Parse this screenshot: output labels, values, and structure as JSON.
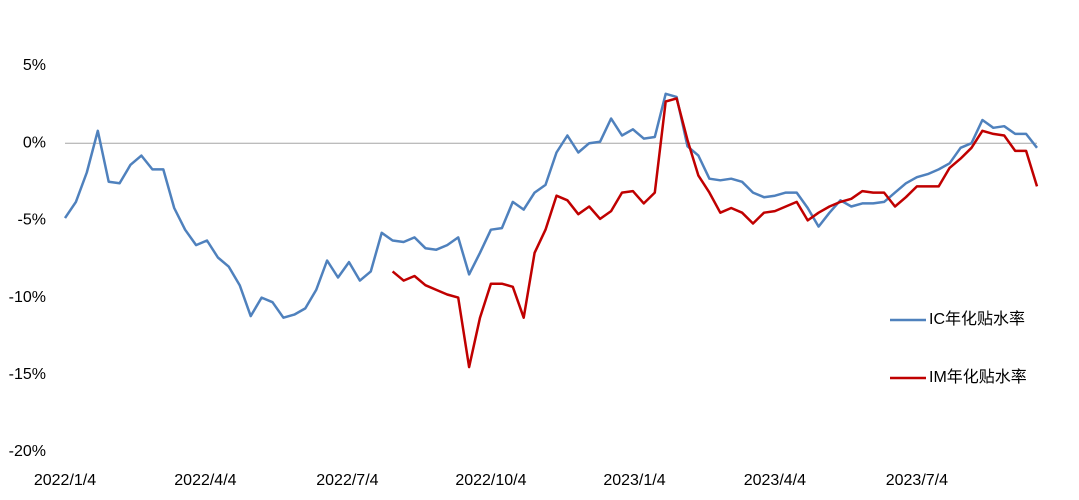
{
  "chart_data": {
    "type": "line",
    "x": [
      "2022/1/4",
      "2022/1/11",
      "2022/1/18",
      "2022/1/25",
      "2022/2/1",
      "2022/2/8",
      "2022/2/15",
      "2022/2/22",
      "2022/3/1",
      "2022/3/8",
      "2022/3/15",
      "2022/3/22",
      "2022/3/29",
      "2022/4/5",
      "2022/4/12",
      "2022/4/19",
      "2022/4/26",
      "2022/5/3",
      "2022/5/10",
      "2022/5/17",
      "2022/5/24",
      "2022/5/31",
      "2022/6/7",
      "2022/6/14",
      "2022/6/21",
      "2022/6/28",
      "2022/7/5",
      "2022/7/12",
      "2022/7/19",
      "2022/7/26",
      "2022/8/2",
      "2022/8/9",
      "2022/8/16",
      "2022/8/23",
      "2022/8/30",
      "2022/9/6",
      "2022/9/13",
      "2022/9/20",
      "2022/9/27",
      "2022/10/4",
      "2022/10/11",
      "2022/10/18",
      "2022/10/25",
      "2022/11/1",
      "2022/11/8",
      "2022/11/15",
      "2022/11/22",
      "2022/11/29",
      "2022/12/6",
      "2022/12/13",
      "2022/12/20",
      "2022/12/27",
      "2023/1/3",
      "2023/1/10",
      "2023/1/17",
      "2023/1/24",
      "2023/1/31",
      "2023/2/7",
      "2023/2/14",
      "2023/2/21",
      "2023/2/28",
      "2023/3/7",
      "2023/3/14",
      "2023/3/21",
      "2023/3/28",
      "2023/4/4",
      "2023/4/11",
      "2023/4/18",
      "2023/4/25",
      "2023/5/2",
      "2023/5/9",
      "2023/5/16",
      "2023/5/23",
      "2023/5/30",
      "2023/6/6",
      "2023/6/13",
      "2023/6/20",
      "2023/6/27",
      "2023/7/4",
      "2023/7/11",
      "2023/7/18",
      "2023/7/25",
      "2023/8/1",
      "2023/8/8",
      "2023/8/15",
      "2023/8/22",
      "2023/8/29",
      "2023/9/5",
      "2023/9/12",
      "2023/9/19"
    ],
    "series": [
      {
        "name": "IC年化贴水率",
        "color": "#4f81bd",
        "values": [
          -4.85,
          -3.8,
          -1.9,
          0.8,
          -2.5,
          -2.6,
          -1.4,
          -0.8,
          -1.7,
          -1.7,
          -4.2,
          -5.6,
          -6.6,
          -6.3,
          -7.4,
          -8.0,
          -9.2,
          -11.2,
          -10.0,
          -10.3,
          -11.3,
          -11.1,
          -10.7,
          -9.5,
          -7.6,
          -8.7,
          -7.7,
          -8.9,
          -8.3,
          -5.8,
          -6.3,
          -6.4,
          -6.1,
          -6.8,
          -6.9,
          -6.6,
          -6.1,
          -8.5,
          -7.1,
          -5.6,
          -5.5,
          -3.8,
          -4.3,
          -3.2,
          -2.7,
          -0.6,
          0.5,
          -0.6,
          0,
          0.1,
          1.6,
          0.5,
          0.9,
          0.3,
          0.4,
          3.2,
          3.0,
          -0.2,
          -0.8,
          -2.3,
          -2.4,
          -2.3,
          -2.5,
          -3.2,
          -3.5,
          -3.4,
          -3.2,
          -3.2,
          -4.2,
          -5.4,
          -4.5,
          -3.7,
          -4.1,
          -3.9,
          -3.9,
          -3.8,
          -3.2,
          -2.6,
          -2.2,
          -2.0,
          -1.7,
          -1.3,
          -0.3,
          0,
          1.5,
          1.0,
          1.1,
          0.6,
          0.6,
          -0.3
        ]
      },
      {
        "name": "IM年化贴水率",
        "color": "#c00000",
        "values": [
          null,
          null,
          null,
          null,
          null,
          null,
          null,
          null,
          null,
          null,
          null,
          null,
          null,
          null,
          null,
          null,
          null,
          null,
          null,
          null,
          null,
          null,
          null,
          null,
          null,
          null,
          null,
          null,
          null,
          null,
          -8.3,
          -8.9,
          -8.6,
          -9.2,
          -9.5,
          -9.8,
          -10.0,
          -14.5,
          -11.3,
          -9.1,
          -9.1,
          -9.3,
          -11.3,
          -7.1,
          -5.6,
          -3.4,
          -3.7,
          -4.6,
          -4.1,
          -4.9,
          -4.4,
          -3.2,
          -3.1,
          -3.9,
          -3.2,
          2.7,
          2.9,
          0.2,
          -2.1,
          -3.2,
          -4.5,
          -4.2,
          -4.5,
          -5.2,
          -4.5,
          -4.4,
          -4.1,
          -3.8,
          -5.0,
          -4.5,
          -4.1,
          -3.8,
          -3.6,
          -3.1,
          -3.2,
          -3.2,
          -4.1,
          -3.5,
          -2.8,
          -2.8,
          -2.8,
          -1.6,
          -1.0,
          -0.3,
          0.8,
          0.6,
          0.5,
          -0.5,
          -0.5,
          -2.8
        ]
      }
    ],
    "xlim": [
      "2022/1/4",
      "2023/9/19"
    ],
    "xticks": [
      "2022/1/4",
      "2022/4/4",
      "2022/7/4",
      "2022/10/4",
      "2023/1/4",
      "2023/4/4",
      "2023/7/4"
    ],
    "ylim": [
      -20,
      5
    ],
    "yticks": [
      {
        "value": -20,
        "label": "-20%"
      },
      {
        "value": -15,
        "label": "-15%"
      },
      {
        "value": -10,
        "label": "-10%"
      },
      {
        "value": -5,
        "label": "-5%"
      },
      {
        "value": 0,
        "label": "0%"
      },
      {
        "value": 5,
        "label": "5%"
      }
    ],
    "zero_line": true,
    "legend": "right"
  }
}
